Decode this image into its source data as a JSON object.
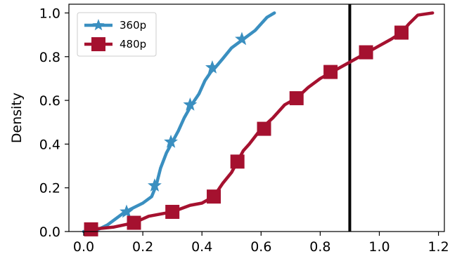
{
  "chart_data": {
    "type": "line",
    "title": "",
    "xlabel": "",
    "ylabel": "Density",
    "xlim": [
      -0.05,
      1.22
    ],
    "ylim": [
      0.0,
      1.04
    ],
    "xticks": [
      0.0,
      0.2,
      0.4,
      0.6,
      0.8,
      1.0,
      1.2
    ],
    "yticks": [
      0.0,
      0.2,
      0.4,
      0.6,
      0.8,
      1.0
    ],
    "xtick_labels": [
      "0.0",
      "0.2",
      "0.4",
      "0.6",
      "0.8",
      "1.0",
      "1.2"
    ],
    "ytick_labels": [
      "0.0",
      "0.2",
      "0.4",
      "0.6",
      "0.8",
      "1.0"
    ],
    "grid": false,
    "legend_position": "top-left",
    "vline": {
      "x": 0.9,
      "color": "#000000"
    },
    "series": [
      {
        "name": "360p",
        "color": "#3a8fc0",
        "marker": "star",
        "x": [
          0.0,
          0.05,
          0.08,
          0.11,
          0.14,
          0.17,
          0.2,
          0.23,
          0.245,
          0.26,
          0.28,
          0.3,
          0.32,
          0.34,
          0.365,
          0.39,
          0.41,
          0.43,
          0.445,
          0.47,
          0.5,
          0.54,
          0.58,
          0.6,
          0.62,
          0.645
        ],
        "y": [
          0.0,
          0.01,
          0.03,
          0.06,
          0.09,
          0.11,
          0.13,
          0.16,
          0.21,
          0.29,
          0.36,
          0.41,
          0.46,
          0.52,
          0.58,
          0.63,
          0.69,
          0.73,
          0.75,
          0.79,
          0.84,
          0.88,
          0.92,
          0.95,
          0.98,
          1.0
        ],
        "marker_x": [
          0.145,
          0.24,
          0.295,
          0.36,
          0.435,
          0.535
        ],
        "marker_y": [
          0.09,
          0.21,
          0.41,
          0.58,
          0.75,
          0.88
        ]
      },
      {
        "name": "480p",
        "color": "#a5112f",
        "marker": "square",
        "x": [
          0.025,
          0.1,
          0.17,
          0.22,
          0.26,
          0.3,
          0.36,
          0.4,
          0.44,
          0.47,
          0.5,
          0.52,
          0.54,
          0.56,
          0.6,
          0.64,
          0.68,
          0.72,
          0.76,
          0.8,
          0.84,
          0.88,
          0.92,
          0.96,
          1.0,
          1.04,
          1.075,
          1.1,
          1.13,
          1.18
        ],
        "y": [
          0.01,
          0.02,
          0.04,
          0.07,
          0.08,
          0.09,
          0.12,
          0.13,
          0.16,
          0.22,
          0.27,
          0.32,
          0.37,
          0.4,
          0.47,
          0.52,
          0.58,
          0.61,
          0.66,
          0.7,
          0.73,
          0.76,
          0.79,
          0.82,
          0.85,
          0.88,
          0.91,
          0.95,
          0.99,
          1.0
        ],
        "marker_x": [
          0.025,
          0.17,
          0.3,
          0.44,
          0.52,
          0.61,
          0.72,
          0.835,
          0.955,
          1.075
        ],
        "marker_y": [
          0.01,
          0.04,
          0.09,
          0.16,
          0.32,
          0.47,
          0.61,
          0.73,
          0.82,
          0.91
        ]
      }
    ]
  }
}
